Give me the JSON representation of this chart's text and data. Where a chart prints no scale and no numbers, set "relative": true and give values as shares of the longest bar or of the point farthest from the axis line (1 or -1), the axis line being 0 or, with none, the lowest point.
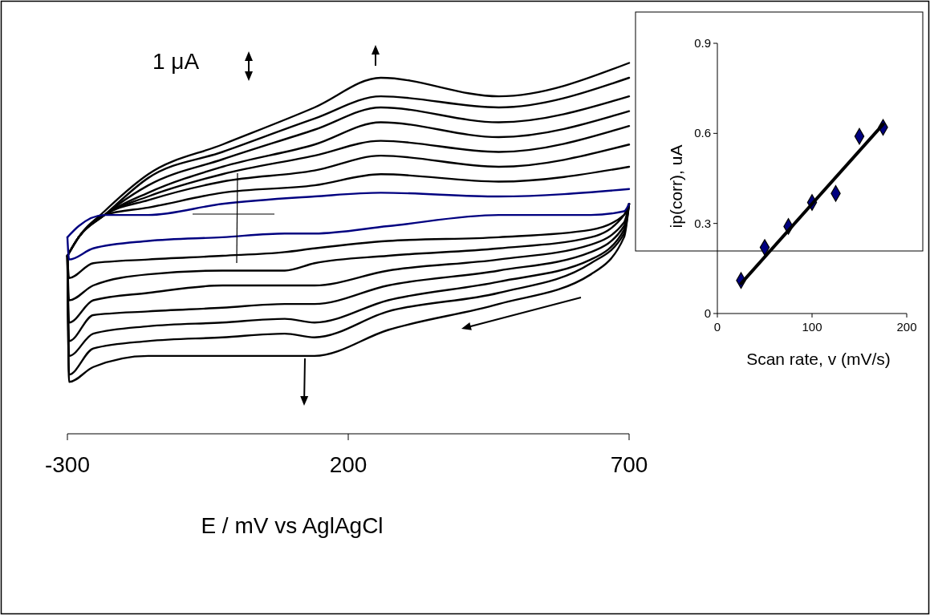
{
  "chart_data": [
    {
      "type": "line",
      "relative": true,
      "xlabel": "E / mV vs AglAgCl",
      "annotations": [
        "1 μA"
      ],
      "xlim": [
        -300,
        700
      ],
      "xticks": [
        -300,
        200,
        700
      ],
      "line_style": "solid",
      "series": [
        {
          "color": "#000000",
          "x": [
            -300,
            -297,
            -254,
            -156,
            -24,
            87,
            140,
            271,
            468,
            632,
            691,
            700
          ],
          "values": [
            0.48,
            0.14,
            0.18,
            0.21,
            0.21,
            0.21,
            0.21,
            0.28,
            0.35,
            0.43,
            0.53,
            0.62
          ]
        },
        {
          "color": "#000000",
          "x": [
            700,
            468,
            258,
            140,
            -24,
            -156,
            -234,
            -280,
            -300
          ],
          "values": [
            1,
            0.91,
            0.96,
            0.88,
            0.78,
            0.7,
            0.6,
            0.53,
            0.48
          ]
        },
        {
          "color": "#000000",
          "x": [
            -300,
            -297,
            -254,
            -156,
            -24,
            87,
            140,
            271,
            468,
            632,
            691,
            700
          ],
          "values": [
            0.48,
            0.16,
            0.23,
            0.25,
            0.26,
            0.27,
            0.26,
            0.33,
            0.38,
            0.46,
            0.54,
            0.62
          ]
        },
        {
          "color": "#000000",
          "x": [
            700,
            468,
            258,
            140,
            -24,
            -156,
            -234,
            -280,
            -300
          ],
          "values": [
            0.96,
            0.88,
            0.91,
            0.85,
            0.76,
            0.69,
            0.59,
            0.53,
            0.48
          ]
        },
        {
          "color": "#000000",
          "x": [
            -300,
            -297,
            -254,
            -156,
            -24,
            87,
            140,
            271,
            468,
            632,
            691,
            700
          ],
          "values": [
            0.48,
            0.21,
            0.27,
            0.29,
            0.3,
            0.31,
            0.3,
            0.36,
            0.41,
            0.47,
            0.55,
            0.62
          ]
        },
        {
          "color": "#000000",
          "x": [
            700,
            468,
            258,
            140,
            -24,
            -156,
            -234,
            -280,
            -300
          ],
          "values": [
            0.91,
            0.84,
            0.88,
            0.82,
            0.74,
            0.67,
            0.59,
            0.53,
            0.48
          ]
        },
        {
          "color": "#000000",
          "x": [
            -300,
            -297,
            -254,
            -156,
            -24,
            87,
            140,
            271,
            468,
            632,
            691,
            700
          ],
          "values": [
            0.48,
            0.25,
            0.32,
            0.33,
            0.34,
            0.35,
            0.35,
            0.4,
            0.44,
            0.49,
            0.56,
            0.62
          ]
        },
        {
          "color": "#000000",
          "x": [
            700,
            468,
            258,
            140,
            -24,
            -156,
            -234,
            -280,
            -300
          ],
          "values": [
            0.87,
            0.8,
            0.84,
            0.78,
            0.72,
            0.65,
            0.59,
            0.53,
            0.48
          ]
        },
        {
          "color": "#000000",
          "x": [
            -300,
            -297,
            -254,
            -156,
            -24,
            87,
            140,
            271,
            468,
            632,
            691,
            700
          ],
          "values": [
            0.48,
            0.3,
            0.36,
            0.38,
            0.4,
            0.4,
            0.4,
            0.44,
            0.47,
            0.51,
            0.57,
            0.62
          ]
        },
        {
          "color": "#000000",
          "x": [
            700,
            468,
            258,
            140,
            -24,
            -156,
            -234,
            -280,
            -300
          ],
          "values": [
            0.83,
            0.76,
            0.79,
            0.75,
            0.7,
            0.64,
            0.59,
            0.53,
            0.48
          ]
        },
        {
          "color": "#000000",
          "x": [
            -300,
            -297,
            -254,
            -156,
            -24,
            87,
            140,
            271,
            468,
            632,
            691,
            700
          ],
          "values": [
            0.48,
            0.36,
            0.4,
            0.43,
            0.44,
            0.44,
            0.46,
            0.48,
            0.5,
            0.53,
            0.59,
            0.62
          ]
        },
        {
          "color": "#000000",
          "x": [
            700,
            468,
            258,
            140,
            -24,
            -156,
            -234,
            -280,
            -300
          ],
          "values": [
            0.78,
            0.72,
            0.75,
            0.71,
            0.68,
            0.63,
            0.59,
            0.53,
            0.48
          ]
        },
        {
          "color": "#000000",
          "x": [
            -300,
            -297,
            -254,
            -156,
            -24,
            87,
            140,
            271,
            468,
            632,
            691,
            700
          ],
          "values": [
            0.48,
            0.42,
            0.46,
            0.47,
            0.48,
            0.49,
            0.5,
            0.52,
            0.53,
            0.55,
            0.59,
            0.62
          ]
        },
        {
          "color": "#000000",
          "x": [
            700,
            468,
            258,
            140,
            -24,
            -156,
            -234,
            -280,
            -300
          ],
          "values": [
            0.72,
            0.68,
            0.7,
            0.67,
            0.65,
            0.61,
            0.59,
            0.53,
            0.48
          ]
        },
        {
          "color": "#000080",
          "x": [
            -300,
            -297,
            -254,
            -156,
            -24,
            87,
            140,
            271,
            468,
            632,
            691,
            700
          ],
          "values": [
            0.53,
            0.47,
            0.5,
            0.52,
            0.53,
            0.54,
            0.54,
            0.56,
            0.59,
            0.59,
            0.6,
            0.62
          ]
        },
        {
          "color": "#000080",
          "x": [
            700,
            468,
            258,
            140,
            -24,
            -156,
            -234,
            -280,
            -300
          ],
          "values": [
            0.66,
            0.64,
            0.65,
            0.64,
            0.62,
            0.59,
            0.59,
            0.56,
            0.53
          ]
        }
      ]
    },
    {
      "type": "scatter",
      "xlabel": "Scan rate, v (mV/s)",
      "ylabel": "ip(corr), uA",
      "xlim": [
        0,
        200
      ],
      "xticks": [
        0,
        100,
        200
      ],
      "ylim": [
        0,
        0.9
      ],
      "yticks": [
        0,
        0.3,
        0.6,
        0.9
      ],
      "series": [
        {
          "color": "#000080",
          "marker": "diamond",
          "x": [
            25,
            50,
            75,
            100,
            125,
            150,
            175
          ],
          "values": [
            0.11,
            0.22,
            0.29,
            0.37,
            0.4,
            0.59,
            0.62
          ]
        },
        {
          "type": "line",
          "color": "#000000",
          "x": [
            25,
            175
          ],
          "values": [
            0.1,
            0.63
          ]
        }
      ]
    }
  ]
}
